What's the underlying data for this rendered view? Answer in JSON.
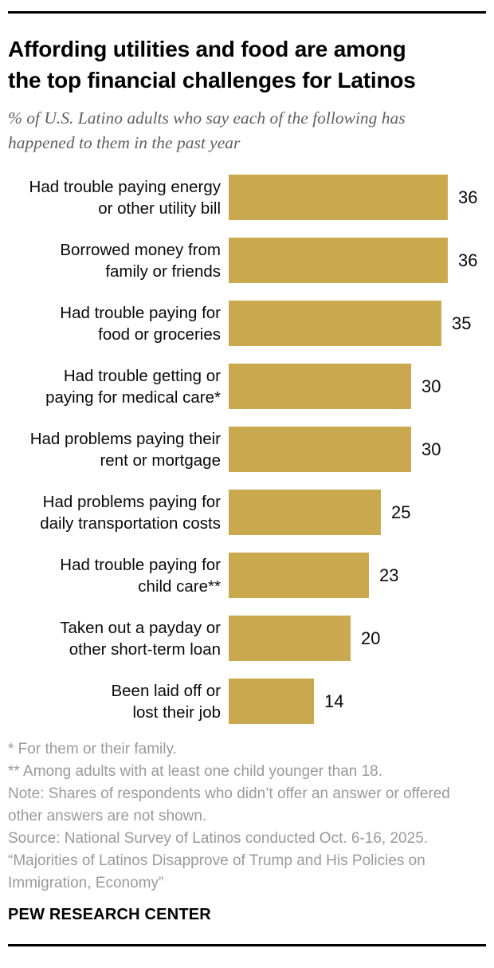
{
  "header": {
    "title": "Affording utilities and food are among the top financial challenges for Latinos",
    "title_lines": [
      "Affording utilities and food are among",
      "the top financial challenges for Latinos"
    ],
    "subtitle": "% of U.S. Latino adults who say each of the following has happened to them in the past year",
    "subtitle_lines": [
      "% of U.S. Latino adults who say each of the following has",
      "happened to them in the past year"
    ]
  },
  "chart_data": {
    "type": "bar",
    "orientation": "horizontal",
    "title": "Affording utilities and food are among the top financial challenges for Latinos",
    "xlabel": "",
    "ylabel": "",
    "xlim": [
      0,
      36
    ],
    "grid": false,
    "legend": false,
    "bar_color": "#CAA84D",
    "value_label_position": "right-of-bar",
    "categories": [
      "Had trouble paying energy or other utility bill",
      "Borrowed money from family or friends",
      "Had trouble paying for food or groceries",
      "Had trouble getting or paying for medical care*",
      "Had problems paying their rent or mortgage",
      "Had problems paying for daily transportation costs",
      "Had trouble paying for child care**",
      "Taken out a payday or other short-term loan",
      "Been laid off or lost their job"
    ],
    "category_lines": [
      [
        "Had trouble paying energy",
        "or other utility bill"
      ],
      [
        "Borrowed money from",
        "family or friends"
      ],
      [
        "Had trouble paying for",
        "food or groceries"
      ],
      [
        "Had trouble getting or",
        "paying for medical care*"
      ],
      [
        "Had problems paying their",
        "rent or mortgage"
      ],
      [
        "Had problems paying for",
        "daily transportation costs"
      ],
      [
        "Had trouble paying for",
        "child care**"
      ],
      [
        "Taken out a payday or",
        "other short-term loan"
      ],
      [
        "Been laid off or",
        "lost their job"
      ]
    ],
    "values": [
      36,
      36,
      35,
      30,
      30,
      25,
      23,
      20,
      14
    ]
  },
  "notes": {
    "lines": [
      "* For them or their family.",
      "** Among adults with at least one child younger than 18.",
      "Note: Shares of respondents who didn’t offer an answer or offered other answers are not shown.",
      "Source: National Survey of Latinos conducted Oct. 6-16, 2025.",
      "“Majorities of Latinos Disapprove of Trump and His Policies on Immigration, Economy”"
    ]
  },
  "footer": {
    "brand": "PEW RESEARCH CENTER"
  }
}
